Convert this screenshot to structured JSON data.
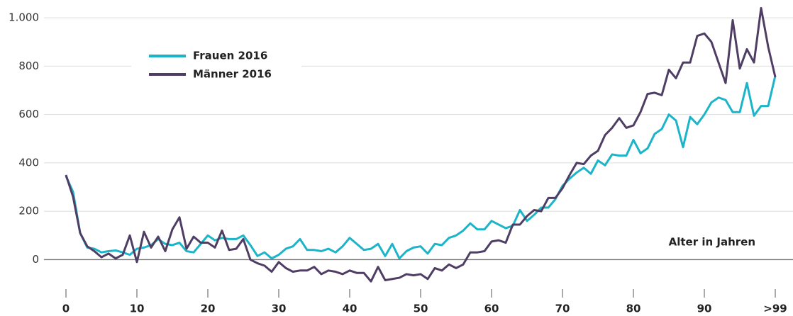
{
  "chart_data": {
    "type": "line",
    "x": [
      0,
      1,
      2,
      3,
      4,
      5,
      6,
      7,
      8,
      9,
      10,
      11,
      12,
      13,
      14,
      15,
      16,
      17,
      18,
      19,
      20,
      21,
      22,
      23,
      24,
      25,
      26,
      27,
      28,
      29,
      30,
      31,
      32,
      33,
      34,
      35,
      36,
      37,
      38,
      39,
      40,
      41,
      42,
      43,
      44,
      45,
      46,
      47,
      48,
      49,
      50,
      51,
      52,
      53,
      54,
      55,
      56,
      57,
      58,
      59,
      60,
      61,
      62,
      63,
      64,
      65,
      66,
      67,
      68,
      69,
      70,
      71,
      72,
      73,
      74,
      75,
      76,
      77,
      78,
      79,
      80,
      81,
      82,
      83,
      84,
      85,
      86,
      87,
      88,
      89,
      90,
      91,
      92,
      93,
      94,
      95,
      96,
      97,
      98,
      99,
      100
    ],
    "series": [
      {
        "name": "Frauen 2016",
        "color": "#1bb4c8",
        "values": [
          345,
          280,
          110,
          50,
          45,
          30,
          35,
          38,
          30,
          20,
          45,
          50,
          60,
          85,
          65,
          60,
          70,
          35,
          30,
          65,
          100,
          80,
          90,
          85,
          85,
          100,
          60,
          15,
          30,
          5,
          20,
          45,
          55,
          85,
          40,
          40,
          35,
          45,
          30,
          55,
          90,
          65,
          40,
          45,
          65,
          15,
          65,
          5,
          35,
          50,
          55,
          25,
          65,
          60,
          90,
          100,
          120,
          150,
          125,
          125,
          160,
          145,
          130,
          140,
          205,
          160,
          185,
          215,
          215,
          250,
          305,
          335,
          360,
          380,
          355,
          410,
          390,
          435,
          430,
          430,
          495,
          440,
          460,
          520,
          540,
          600,
          575,
          465,
          590,
          560,
          600,
          650,
          670,
          660,
          610,
          610,
          730,
          595,
          635,
          635,
          760
        ]
      },
      {
        "name": "Männer 2016",
        "color": "#4f3e63",
        "values": [
          350,
          260,
          110,
          55,
          35,
          10,
          25,
          5,
          20,
          100,
          -10,
          115,
          50,
          95,
          35,
          125,
          175,
          45,
          95,
          70,
          70,
          50,
          120,
          40,
          45,
          85,
          0,
          -15,
          -25,
          -50,
          -10,
          -35,
          -50,
          -45,
          -45,
          -30,
          -60,
          -45,
          -50,
          -60,
          -45,
          -55,
          -55,
          -90,
          -30,
          -85,
          -80,
          -75,
          -60,
          -65,
          -60,
          -80,
          -35,
          -45,
          -20,
          -35,
          -20,
          30,
          30,
          35,
          75,
          80,
          70,
          145,
          145,
          180,
          205,
          200,
          255,
          255,
          295,
          350,
          400,
          395,
          430,
          450,
          515,
          545,
          585,
          545,
          555,
          610,
          685,
          690,
          680,
          785,
          750,
          815,
          815,
          925,
          935,
          900,
          815,
          730,
          990,
          790,
          870,
          815,
          1040,
          880,
          755
        ]
      }
    ],
    "xlim": [
      -3,
      102
    ],
    "xticks": [
      0,
      10,
      20,
      30,
      40,
      50,
      60,
      70,
      80,
      90,
      {
        "value": 100,
        "label": ">99"
      }
    ],
    "ylim": [
      -110,
      1050
    ],
    "yticks": [
      0,
      200,
      400,
      600,
      800,
      {
        "value": 1000,
        "label": "1.000"
      }
    ],
    "annotation": "Alter in Jahren",
    "grid": true
  }
}
